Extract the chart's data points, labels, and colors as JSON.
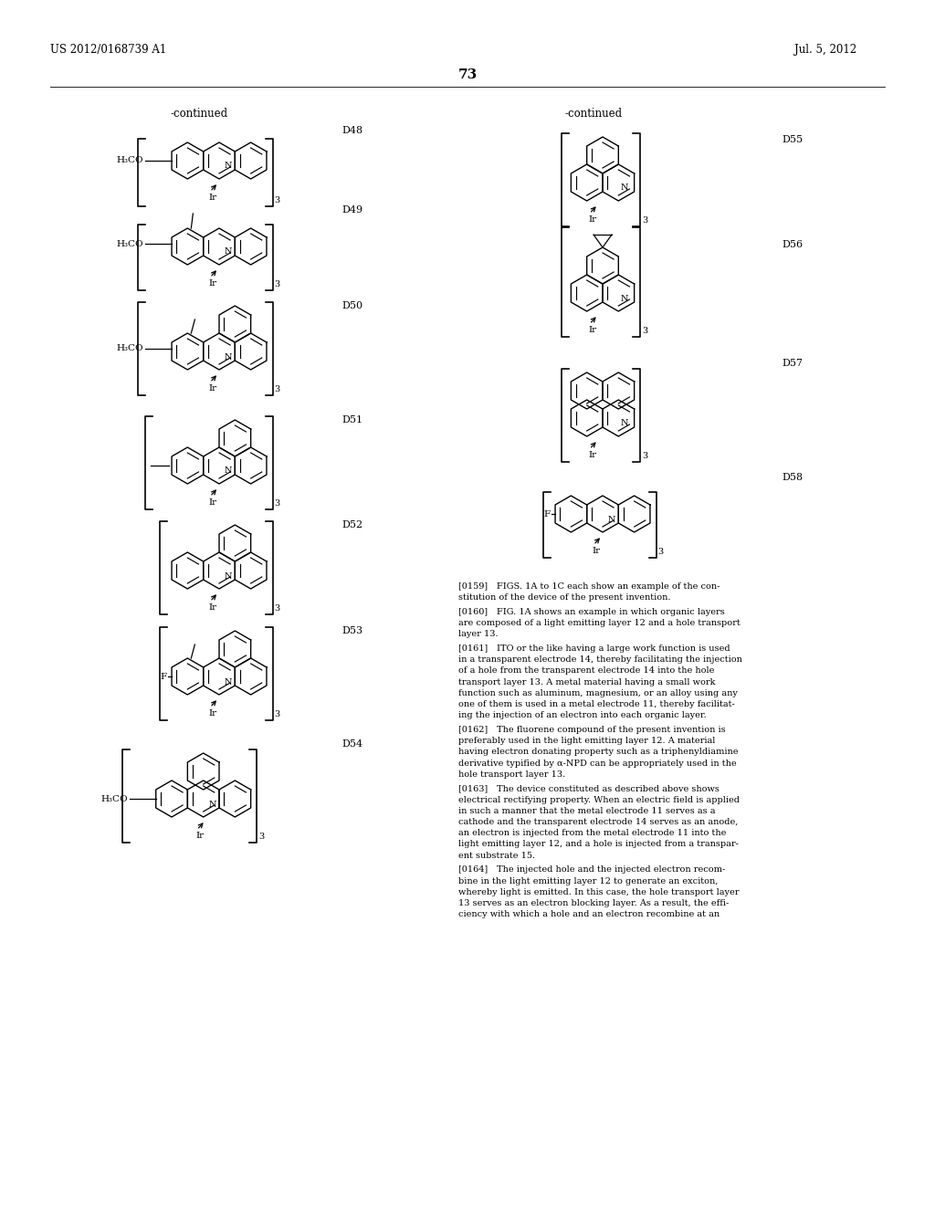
{
  "page_number": "73",
  "patent_number": "US 2012/0168739 A1",
  "patent_date": "Jul. 5, 2012",
  "bg": "#ffffff",
  "tc": "#000000",
  "continued": "-continued",
  "left_labels": [
    "D48",
    "D49",
    "D50",
    "D51",
    "D52",
    "D53",
    "D54"
  ],
  "right_labels": [
    "D55",
    "D56",
    "D57",
    "D58"
  ],
  "para_texts": [
    "[0159] FIGS. 1A to 1C each show an example of the con-\nstitution of the device of the present invention.",
    "[0160] FIG. 1A shows an example in which organic layers\nare composed of a light emitting layer 12 and a hole transport\nlayer 13.",
    "[0161] ITO or the like having a large work function is used\nin a transparent electrode 14, thereby facilitating the injection\nof a hole from the transparent electrode 14 into the hole\ntransport layer 13. A metal material having a small work\nfunction such as aluminum, magnesium, or an alloy using any\none of them is used in a metal electrode 11, thereby facilitat-\ning the injection of an electron into each organic layer.",
    "[0162] The fluorene compound of the present invention is\npreferably used in the light emitting layer 12. A material\nhaving electron donating property such as a triphenyldiamine\nderivative typified by α-NPD can be appropriately used in the\nhole transport layer 13.",
    "[0163] The device constituted as described above shows\nelectrical rectifying property. When an electric field is applied\nin such a manner that the metal electrode 11 serves as a\ncathode and the transparent electrode 14 serves as an anode,\nan electron is injected from the metal electrode 11 into the\nlight emitting layer 12, and a hole is injected from a transpar-\nent substrate 15.",
    "[0164] The injected hole and the injected electron recom-\nbine in the light emitting layer 12 to generate an exciton,\nwhereby light is emitted. In this case, the hole transport layer\n13 serves as an electron blocking layer. As a result, the effi-\nciency with which a hole and an electron recombine at an"
  ]
}
